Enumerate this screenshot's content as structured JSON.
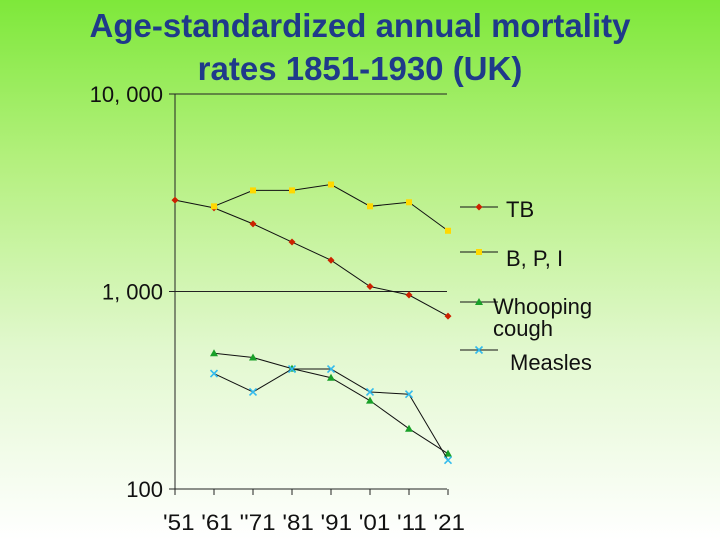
{
  "title_lines": [
    "Age-standardized annual mortality",
    "rates 1851-1930 (UK)"
  ],
  "chart_data": {
    "type": "line",
    "title": "Age-standardized annual mortality rates 1851-1930 (UK)",
    "scale": "log",
    "ylim": [
      100,
      10000
    ],
    "y_ticks": [
      {
        "value": 100,
        "label": "100"
      },
      {
        "value": 1000,
        "label": "1, 000"
      },
      {
        "value": 10000,
        "label": "10, 000"
      }
    ],
    "categories": [
      "'51",
      "'61",
      "'71",
      "'81",
      "'91",
      "'01",
      "'11",
      "'21"
    ],
    "x_tick_label_text": "'51 '61 ''71 '81 '91 '01 '11 '21",
    "series": [
      {
        "name": "TB",
        "color": "#cc2200",
        "marker": "diamond",
        "values": [
          2900,
          2650,
          2200,
          1780,
          1440,
          1060,
          960,
          750
        ]
      },
      {
        "name": "B, P, I",
        "color": "#ffd800",
        "marker": "square",
        "values": [
          null,
          2700,
          3250,
          3250,
          3480,
          2700,
          2830,
          2030
        ]
      },
      {
        "name": "Whooping cough",
        "color": "#18a028",
        "marker": "triangle",
        "values": [
          null,
          487,
          463,
          407,
          366,
          280,
          202,
          151
        ]
      },
      {
        "name": "Measles",
        "color": "#33bbee",
        "marker": "x",
        "values": [
          null,
          384,
          310,
          405,
          405,
          310,
          302,
          140
        ]
      }
    ],
    "legend": {
      "position": "right",
      "labels": [
        {
          "series": 0,
          "lines": [
            "TB"
          ]
        },
        {
          "series": 1,
          "lines": [
            "B, P, I"
          ]
        },
        {
          "series": 2,
          "lines": [
            "Whooping",
            "cough"
          ]
        },
        {
          "series": 3,
          "lines": [
            "Measles"
          ]
        }
      ]
    }
  }
}
